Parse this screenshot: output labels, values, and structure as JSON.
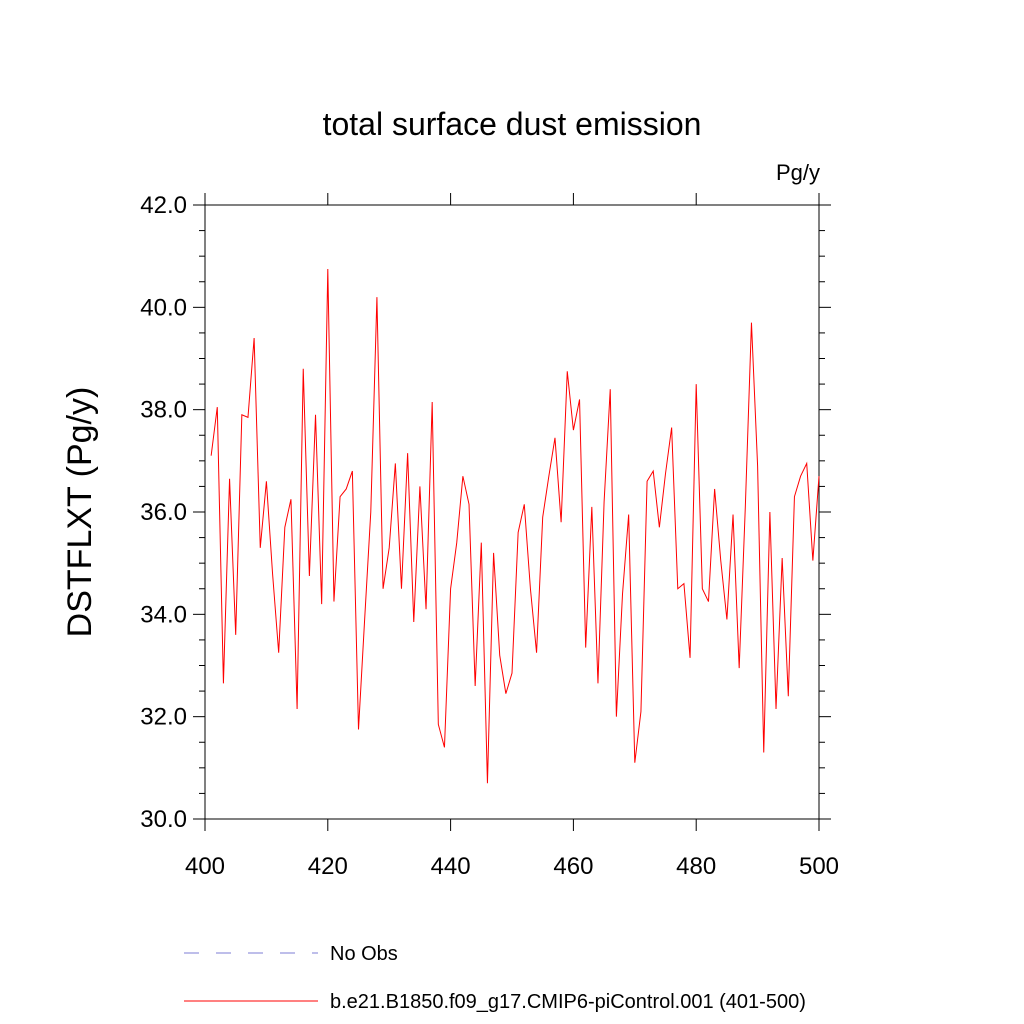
{
  "chart_data": {
    "type": "line",
    "title": "total surface dust emission",
    "units_label": "Pg/y",
    "ylabel": "DSTFLXT  (Pg/y)",
    "xlabel": "",
    "xlim": [
      400,
      500
    ],
    "ylim": [
      30.0,
      42.0
    ],
    "x_ticks": [
      400,
      420,
      440,
      460,
      480,
      500
    ],
    "x_tick_labels": [
      "400",
      "420",
      "440",
      "460",
      "480",
      "500"
    ],
    "y_ticks": [
      30.0,
      32.0,
      34.0,
      36.0,
      38.0,
      40.0,
      42.0
    ],
    "y_tick_labels": [
      "30.0",
      "32.0",
      "34.0",
      "36.0",
      "38.0",
      "40.0",
      "42.0"
    ],
    "grid": false,
    "legend_position": "bottom",
    "legend": [
      {
        "name": "No Obs",
        "color": "#7d7dd6",
        "style": "dashed"
      },
      {
        "name": "b.e21.B1850.f09_g17.CMIP6-piControl.001 (401-500)",
        "color": "#ff0000",
        "style": "solid"
      }
    ],
    "series": [
      {
        "name": "b.e21.B1850.f09_g17.CMIP6-piControl.001 (401-500)",
        "color": "#ff0000",
        "x": [
          401,
          402,
          403,
          404,
          405,
          406,
          407,
          408,
          409,
          410,
          411,
          412,
          413,
          414,
          415,
          416,
          417,
          418,
          419,
          420,
          421,
          422,
          423,
          424,
          425,
          426,
          427,
          428,
          429,
          430,
          431,
          432,
          433,
          434,
          435,
          436,
          437,
          438,
          439,
          440,
          441,
          442,
          443,
          444,
          445,
          446,
          447,
          448,
          449,
          450,
          451,
          452,
          453,
          454,
          455,
          456,
          457,
          458,
          459,
          460,
          461,
          462,
          463,
          464,
          465,
          466,
          467,
          468,
          469,
          470,
          471,
          472,
          473,
          474,
          475,
          476,
          477,
          478,
          479,
          480,
          481,
          482,
          483,
          484,
          485,
          486,
          487,
          488,
          489,
          490,
          491,
          492,
          493,
          494,
          495,
          496,
          497,
          498,
          499,
          500
        ],
        "values": [
          37.1,
          38.05,
          32.65,
          36.65,
          33.6,
          37.9,
          37.85,
          39.4,
          35.3,
          36.6,
          34.8,
          33.25,
          35.7,
          36.25,
          32.15,
          38.8,
          34.75,
          37.9,
          34.2,
          40.75,
          34.25,
          36.3,
          36.45,
          36.8,
          31.75,
          33.9,
          36.0,
          40.2,
          34.5,
          35.3,
          36.95,
          34.5,
          37.15,
          33.85,
          36.5,
          34.1,
          38.15,
          31.85,
          31.4,
          34.5,
          35.4,
          36.7,
          36.15,
          32.6,
          35.4,
          30.7,
          35.2,
          33.2,
          32.45,
          32.85,
          35.6,
          36.15,
          34.5,
          33.25,
          35.9,
          36.7,
          37.45,
          35.8,
          38.75,
          37.6,
          38.2,
          33.35,
          36.1,
          32.65,
          36.2,
          38.4,
          32.0,
          34.4,
          35.95,
          31.1,
          32.1,
          36.6,
          36.8,
          35.7,
          36.75,
          37.65,
          34.5,
          34.6,
          33.15,
          38.5,
          34.5,
          34.25,
          36.45,
          35.05,
          33.9,
          35.95,
          32.95,
          36.1,
          39.7,
          36.9,
          31.3,
          36.0,
          32.15,
          35.1,
          32.4,
          36.3,
          36.7,
          36.95,
          35.05,
          36.7
        ]
      }
    ]
  }
}
